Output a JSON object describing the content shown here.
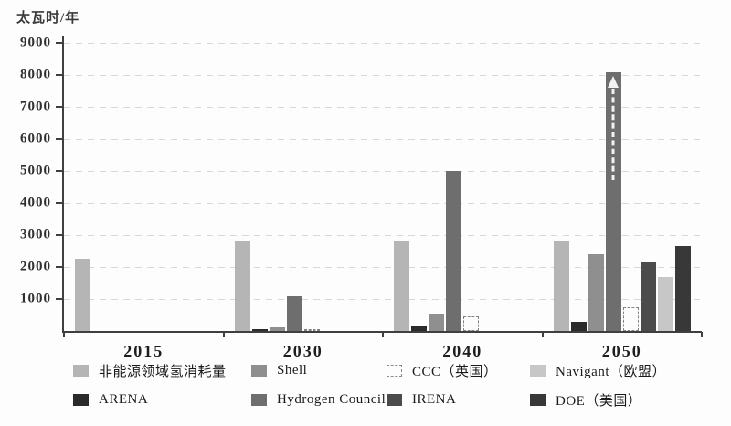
{
  "chart_data": {
    "type": "bar",
    "title": "",
    "ylabel": "太瓦时/年",
    "xlabel": "",
    "ylim": [
      0,
      9000
    ],
    "ytick_interval": 1000,
    "grid": "dashed-horizontal",
    "legend_position": "bottom",
    "categories": [
      "2015",
      "2030",
      "2040",
      "2050"
    ],
    "series": [
      {
        "name": "非能源领域氢消耗量",
        "color": "#b5b5b5",
        "style": "solid",
        "values": [
          2250,
          2800,
          2800,
          2800
        ]
      },
      {
        "name": "ARENA",
        "color": "#2b2b2b",
        "style": "solid",
        "values": [
          null,
          50,
          150,
          300
        ]
      },
      {
        "name": "Shell",
        "color": "#8f8f8f",
        "style": "solid",
        "values": [
          null,
          120,
          550,
          2400
        ]
      },
      {
        "name": "Hydrogen Council",
        "color": "#6e6e6e",
        "style": "solid",
        "values": [
          null,
          1080,
          5000,
          8100
        ],
        "arrow_at": "2050",
        "note": "2050 bar drawn with upward dashed arrow meaning value exceeds axis"
      },
      {
        "name": "CCC（英国）",
        "color": "#fcfcfc",
        "style": "dashed-outline",
        "border_color": "#828282",
        "values": [
          null,
          60,
          450,
          750
        ]
      },
      {
        "name": "IRENA",
        "color": "#4b4b4b",
        "style": "solid",
        "values": [
          null,
          null,
          null,
          2150
        ]
      },
      {
        "name": "Navigant（欧盟）",
        "color": "#c7c7c7",
        "style": "solid",
        "values": [
          null,
          null,
          null,
          1700
        ]
      },
      {
        "name": "DOE（美国）",
        "color": "#383838",
        "style": "solid",
        "values": [
          null,
          null,
          null,
          2650
        ]
      }
    ],
    "legend_rows": [
      [
        0,
        2,
        4,
        6
      ],
      [
        1,
        3,
        5,
        7
      ]
    ]
  }
}
